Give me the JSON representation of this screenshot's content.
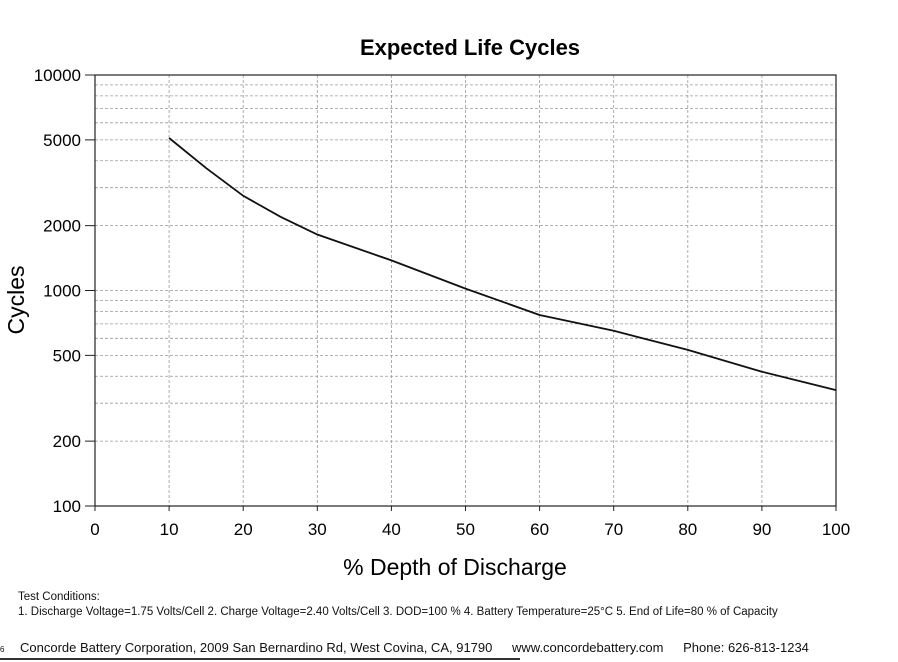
{
  "chart_data": {
    "type": "line",
    "title": "Expected Life Cycles",
    "xlabel": "% Depth of Discharge",
    "ylabel": "Cycles",
    "xlim": [
      0,
      100
    ],
    "ylim": [
      100,
      10000
    ],
    "yscale": "log",
    "xticks": [
      0,
      10,
      20,
      30,
      40,
      50,
      60,
      70,
      80,
      90,
      100
    ],
    "yticks": [
      100,
      200,
      500,
      1000,
      2000,
      5000,
      10000
    ],
    "grid": true,
    "series": [
      {
        "x": [
          10,
          15,
          20,
          25,
          30,
          40,
          50,
          60,
          70,
          80,
          90,
          100
        ],
        "values": [
          5100,
          3700,
          2750,
          2200,
          1820,
          1380,
          1020,
          770,
          650,
          530,
          420,
          345
        ]
      }
    ]
  },
  "notes": {
    "heading": "Test Conditions:",
    "line": "1. Discharge Voltage=1.75 Volts/Cell  2. Charge Voltage=2.40 Volts/Cell  3. DOD=100 %  4. Battery Temperature=25°C  5. End of Life=80 % of Capacity"
  },
  "footer": {
    "page_number": "6",
    "company": "Concorde Battery Corporation,  2009 San Bernardino Rd,  West Covina,  CA,  91790",
    "website": "www.concordebattery.com",
    "phone": "Phone: 626-813-1234"
  }
}
